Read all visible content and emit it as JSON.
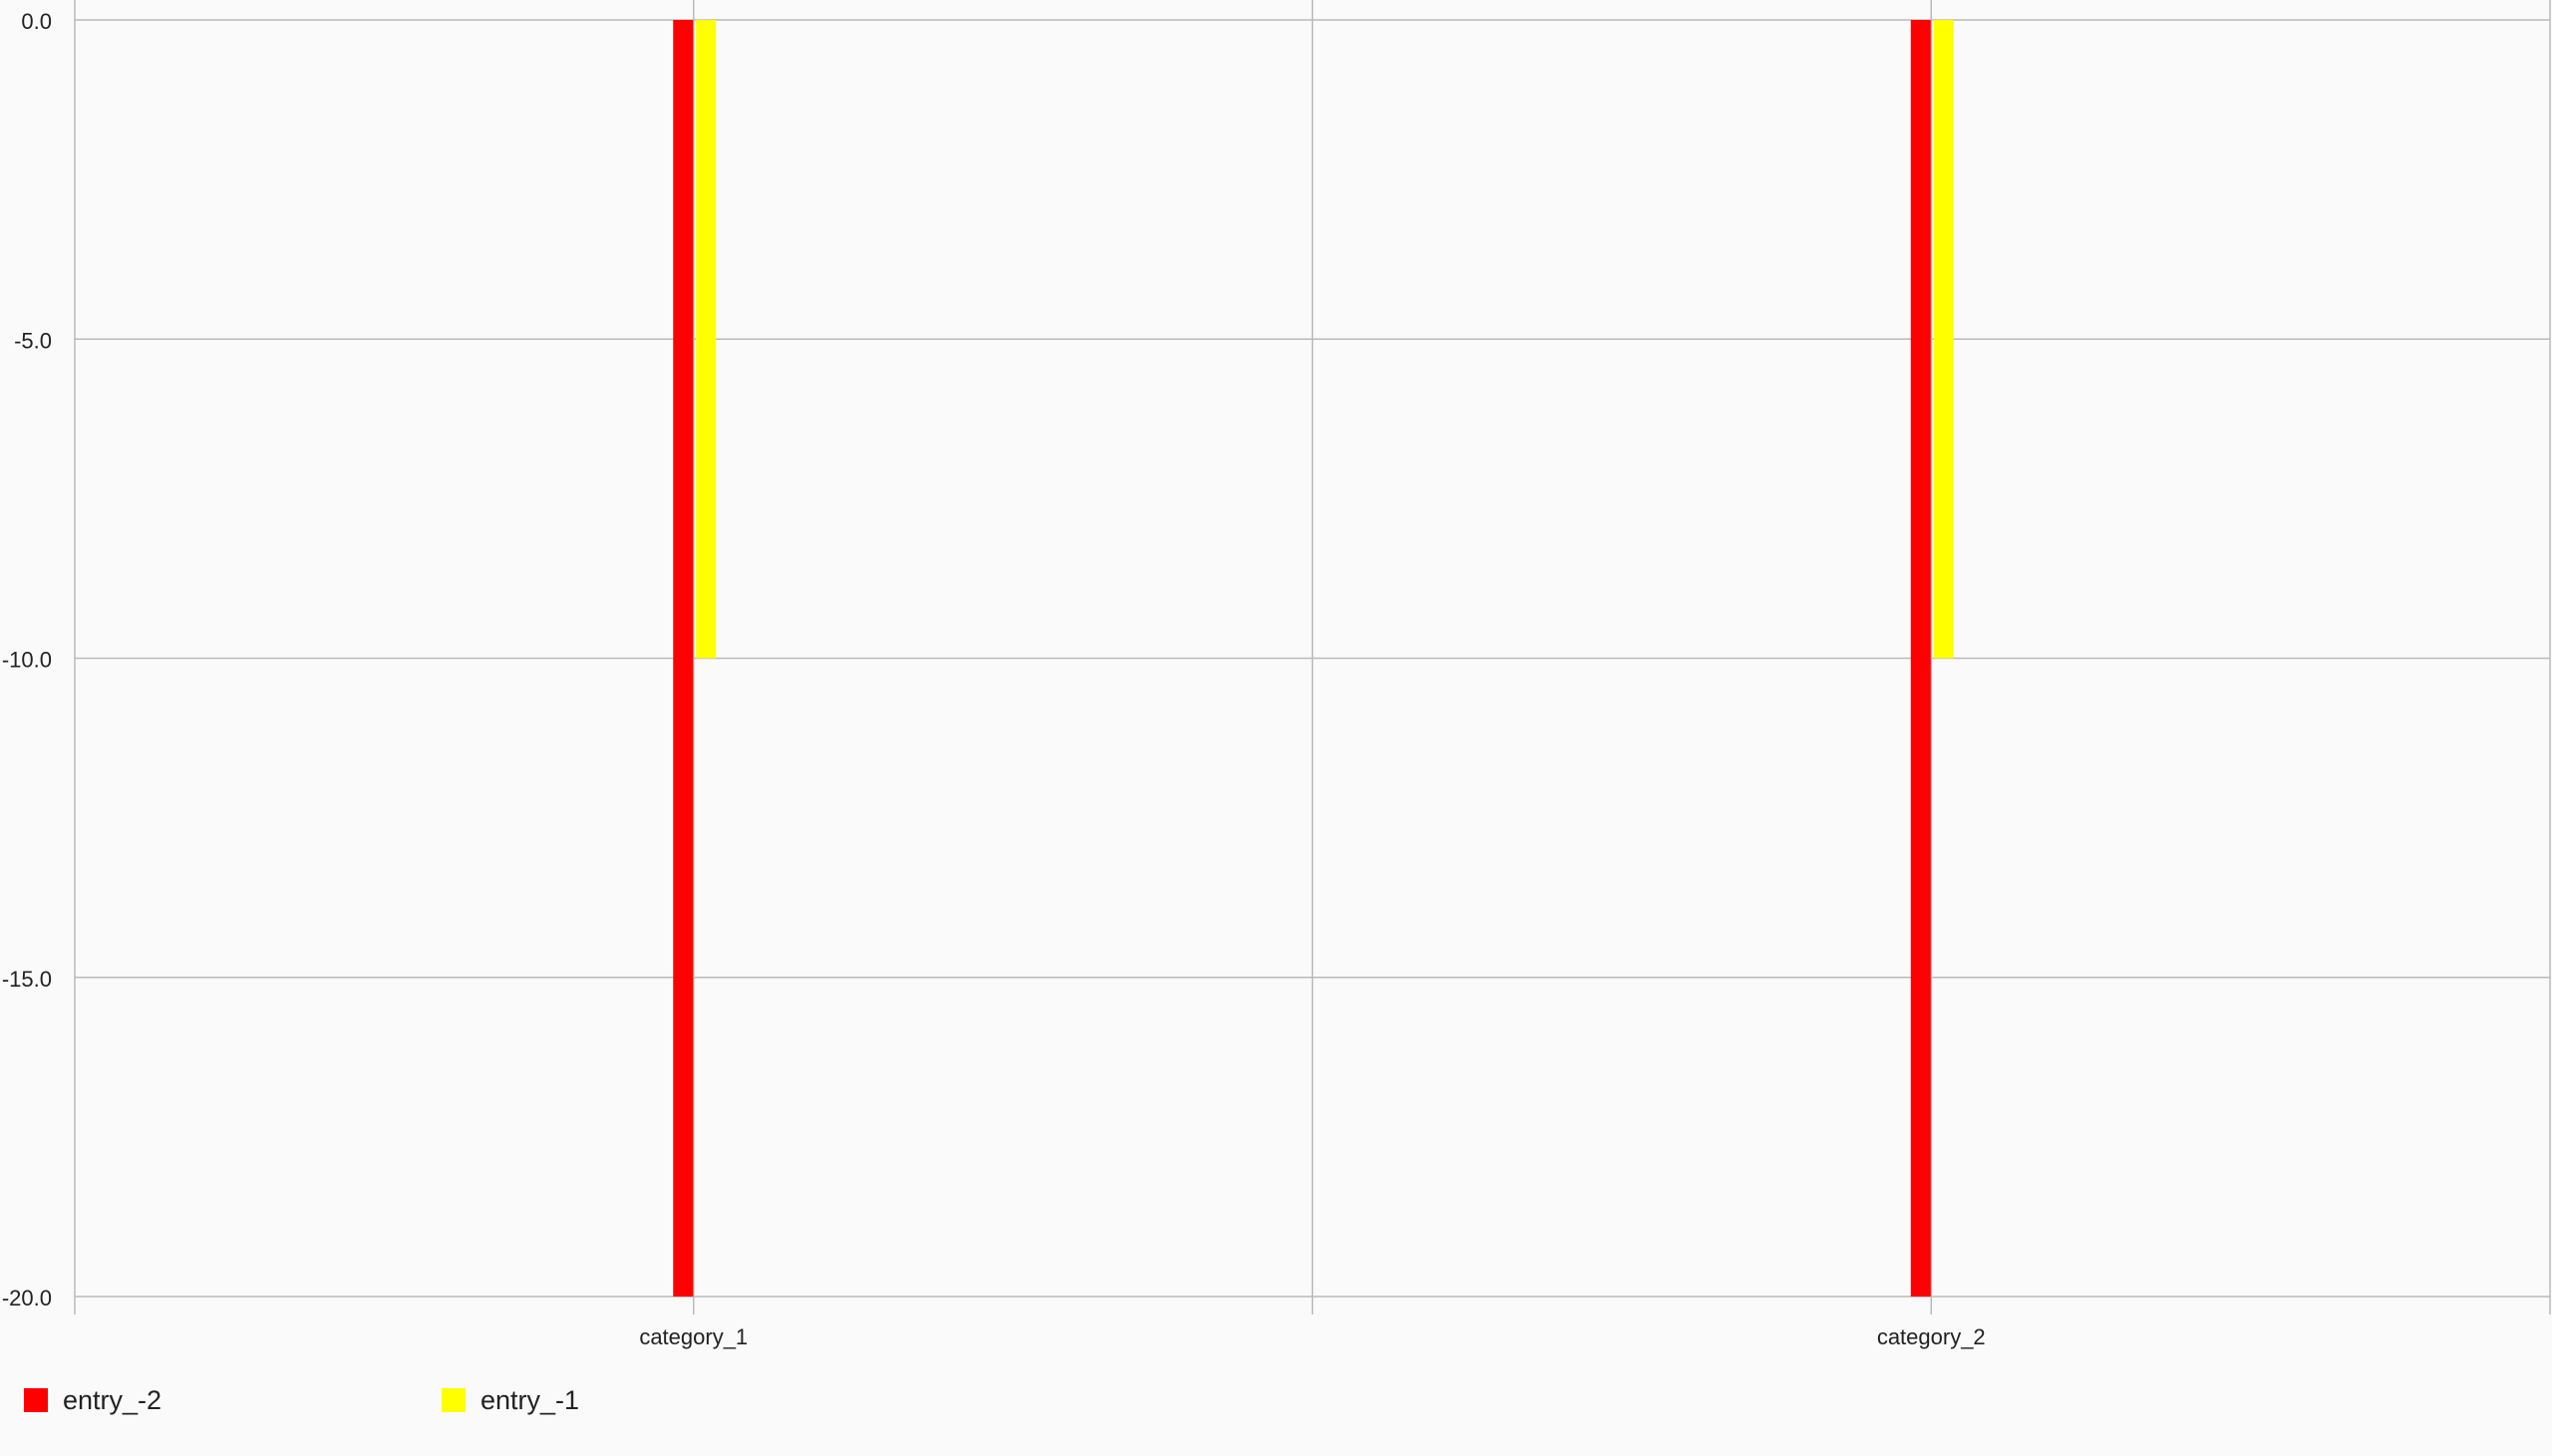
{
  "chart_data": {
    "type": "bar",
    "categories": [
      "category_1",
      "category_2"
    ],
    "series": [
      {
        "name": "entry_-2",
        "color": "#ff0000",
        "values": [
          -20,
          -20
        ]
      },
      {
        "name": "entry_-1",
        "color": "#ffff00",
        "values": [
          -10,
          -10
        ]
      }
    ],
    "ylim": [
      -20,
      0
    ],
    "y_ticks": [
      "0.0",
      "-5.0",
      "-10.0",
      "-15.0",
      "-20.0"
    ],
    "y_tick_values": [
      0,
      -5,
      -10,
      -15,
      -20
    ],
    "grid": true,
    "legend_position": "bottom-left",
    "title": "",
    "xlabel": "",
    "ylabel": ""
  }
}
